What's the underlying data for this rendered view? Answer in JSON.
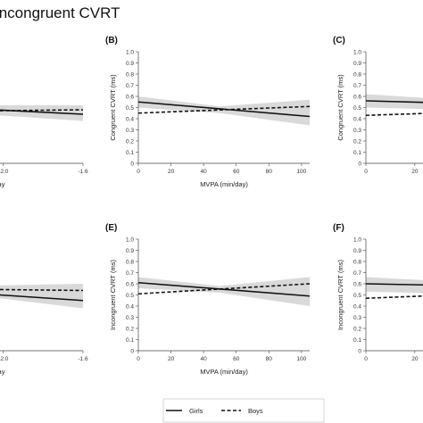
{
  "title": "Incongruent CVRT",
  "legend": {
    "entries": [
      {
        "name": "Girls",
        "style": "solid"
      },
      {
        "name": "Boys",
        "style": "dashed"
      }
    ]
  },
  "colors": {
    "line": "#111111",
    "band": "#d9d9d9",
    "axis": "#444444"
  },
  "chart_data": [
    {
      "id": "A",
      "type": "line",
      "panel_label": "",
      "xlabel": "…ient per Day",
      "ylabel": "",
      "xticks": [
        "-2.0",
        "-1.6"
      ],
      "xlim": [
        -2.6,
        -1.6
      ],
      "ylim": [
        0.0,
        1.0
      ],
      "series": [
        {
          "name": "Girls",
          "x": [
            -2.6,
            -1.6
          ],
          "y": [
            0.53,
            0.44
          ]
        },
        {
          "name": "Boys",
          "x": [
            -2.6,
            -1.6
          ],
          "y": [
            0.46,
            0.48
          ]
        }
      ],
      "band": {
        "x": [
          -2.6,
          -2.2,
          -1.6
        ],
        "lo": [
          0.46,
          0.45,
          0.38
        ],
        "hi": [
          0.56,
          0.52,
          0.52
        ]
      }
    },
    {
      "id": "B",
      "type": "line",
      "panel_label": "(B)",
      "xlabel": "MVPA (min/day)",
      "ylabel": "Congruent CVRT (ms)",
      "xticks": [
        "0",
        "20",
        "40",
        "60",
        "80",
        "100"
      ],
      "xlim": [
        0,
        105
      ],
      "yticks": [
        "0",
        "0.1",
        "0.2",
        "0.3",
        "0.4",
        "0.5",
        "0.6",
        "0.7",
        "0.8",
        "0.9",
        "1.0"
      ],
      "ylim": [
        0.0,
        1.0
      ],
      "series": [
        {
          "name": "Girls",
          "x": [
            0,
            105
          ],
          "y": [
            0.55,
            0.42
          ]
        },
        {
          "name": "Boys",
          "x": [
            0,
            105
          ],
          "y": [
            0.45,
            0.51
          ]
        }
      ],
      "band": {
        "x": [
          0,
          50,
          105
        ],
        "lo": [
          0.5,
          0.45,
          0.34
        ],
        "hi": [
          0.6,
          0.51,
          0.57
        ]
      }
    },
    {
      "id": "C",
      "type": "line",
      "panel_label": "(C)",
      "xlabel": "Averag…",
      "ylabel": "Congruent CVRT (ms)",
      "xticks": [
        "0",
        "20"
      ],
      "xlim": [
        0,
        70
      ],
      "yticks": [
        "0",
        "0.1",
        "0.2",
        "0.3",
        "0.4",
        "0.5",
        "0.6",
        "0.7",
        "0.8",
        "0.9",
        "1.0"
      ],
      "ylim": [
        0.0,
        1.0
      ],
      "series": [
        {
          "name": "Girls",
          "x": [
            0,
            70
          ],
          "y": [
            0.56,
            0.52
          ]
        },
        {
          "name": "Boys",
          "x": [
            0,
            70
          ],
          "y": [
            0.43,
            0.48
          ]
        }
      ],
      "band": {
        "x": [
          0,
          35,
          70
        ],
        "lo": [
          0.5,
          0.48,
          0.44
        ],
        "hi": [
          0.62,
          0.57,
          0.57
        ]
      }
    },
    {
      "id": "D",
      "type": "line",
      "panel_label": "",
      "xlabel": "…ient per Day",
      "ylabel": "",
      "xticks": [
        "-2.0",
        "-1.6"
      ],
      "xlim": [
        -2.6,
        -1.6
      ],
      "ylim": [
        0.0,
        1.0
      ],
      "series": [
        {
          "name": "Girls",
          "x": [
            -2.6,
            -1.6
          ],
          "y": [
            0.57,
            0.45
          ]
        },
        {
          "name": "Boys",
          "x": [
            -2.6,
            -1.6
          ],
          "y": [
            0.56,
            0.54
          ]
        }
      ],
      "band": {
        "x": [
          -2.6,
          -2.2,
          -1.6
        ],
        "lo": [
          0.53,
          0.51,
          0.38
        ],
        "hi": [
          0.6,
          0.58,
          0.6
        ]
      }
    },
    {
      "id": "E",
      "type": "line",
      "panel_label": "(E)",
      "xlabel": "MVPA (min/day)",
      "ylabel": "Incongruent CVRT (ms)",
      "xticks": [
        "0",
        "20",
        "40",
        "60",
        "80",
        "100"
      ],
      "xlim": [
        0,
        105
      ],
      "yticks": [
        "0",
        "0.1",
        "0.2",
        "0.3",
        "0.4",
        "0.5",
        "0.6",
        "0.7",
        "0.8",
        "0.9",
        "1.0"
      ],
      "ylim": [
        0.0,
        1.0
      ],
      "series": [
        {
          "name": "Girls",
          "x": [
            0,
            105
          ],
          "y": [
            0.61,
            0.49
          ]
        },
        {
          "name": "Boys",
          "x": [
            0,
            105
          ],
          "y": [
            0.51,
            0.6
          ]
        }
      ],
      "band": {
        "x": [
          0,
          50,
          105
        ],
        "lo": [
          0.56,
          0.52,
          0.4
        ],
        "hi": [
          0.66,
          0.58,
          0.66
        ]
      }
    },
    {
      "id": "F",
      "type": "line",
      "panel_label": "(F)",
      "xlabel": "Averag…",
      "ylabel": "Incongruent CVRT (ms)",
      "xticks": [
        "0",
        "20"
      ],
      "xlim": [
        0,
        70
      ],
      "yticks": [
        "0",
        "0.1",
        "0.2",
        "0.3",
        "0.4",
        "0.5",
        "0.6",
        "0.7",
        "0.8",
        "0.9",
        "1.0"
      ],
      "ylim": [
        0.0,
        1.0
      ],
      "series": [
        {
          "name": "Girls",
          "x": [
            0,
            70
          ],
          "y": [
            0.6,
            0.57
          ]
        },
        {
          "name": "Boys",
          "x": [
            0,
            70
          ],
          "y": [
            0.47,
            0.53
          ]
        }
      ],
      "band": {
        "x": [
          0,
          35,
          70
        ],
        "lo": [
          0.53,
          0.51,
          0.47
        ],
        "hi": [
          0.66,
          0.62,
          0.6
        ]
      }
    }
  ]
}
